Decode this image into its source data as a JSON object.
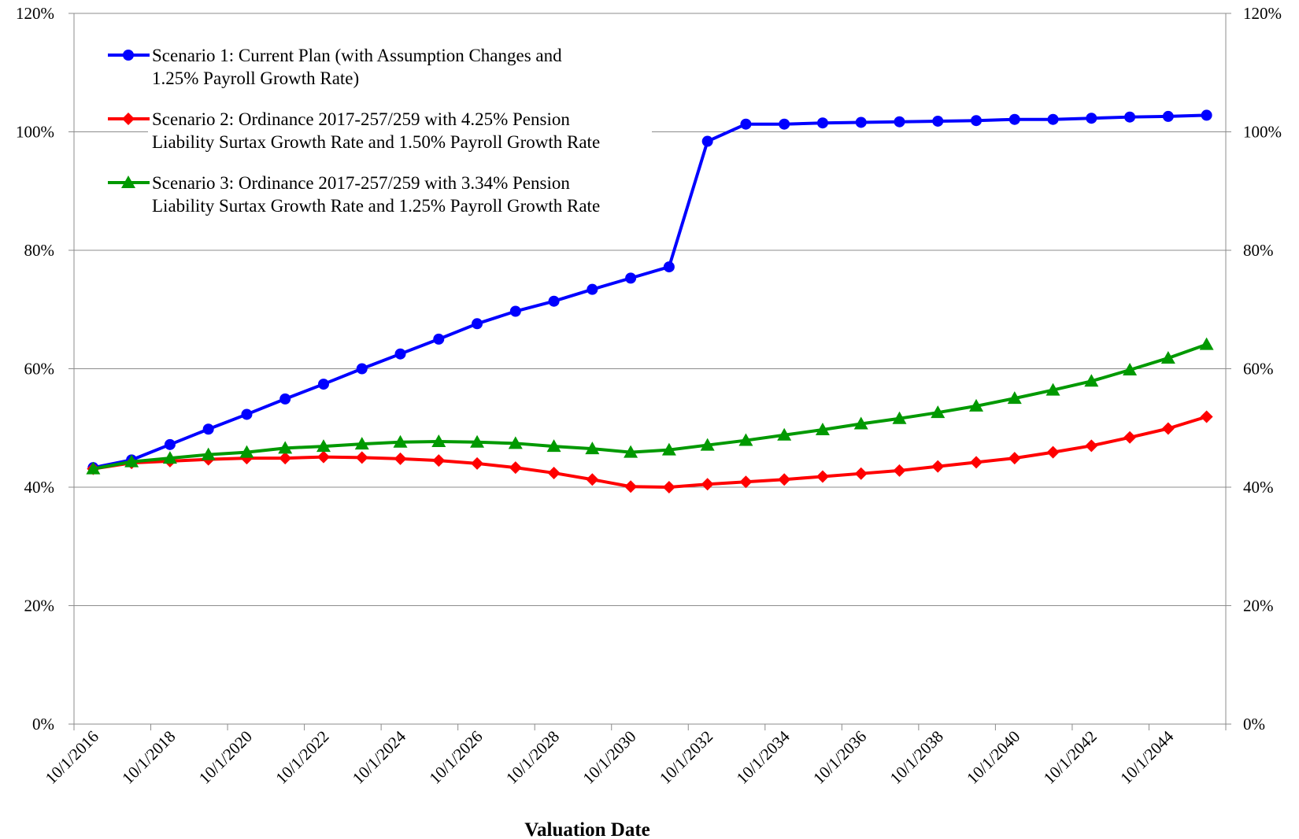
{
  "chart_data": {
    "type": "line",
    "title": "",
    "xlabel": "Valuation Date",
    "ylabel": "",
    "ylim": [
      0,
      1.2
    ],
    "y_ticks": [
      "0%",
      "20%",
      "40%",
      "60%",
      "80%",
      "100%",
      "120%"
    ],
    "x_tick_labels": [
      "10/1/2016",
      "10/1/2018",
      "10/1/2020",
      "10/1/2022",
      "10/1/2024",
      "10/1/2026",
      "10/1/2028",
      "10/1/2030",
      "10/1/2032",
      "10/1/2034",
      "10/1/2036",
      "10/1/2038",
      "10/1/2040",
      "10/1/2042",
      "10/1/2044"
    ],
    "secondary_y_axis": true,
    "grid": "horizontal",
    "legend_position": "top-left",
    "x": [
      "10/1/2016",
      "10/1/2017",
      "10/1/2018",
      "10/1/2019",
      "10/1/2020",
      "10/1/2021",
      "10/1/2022",
      "10/1/2023",
      "10/1/2024",
      "10/1/2025",
      "10/1/2026",
      "10/1/2027",
      "10/1/2028",
      "10/1/2029",
      "10/1/2030",
      "10/1/2031",
      "10/1/2032",
      "10/1/2033",
      "10/1/2034",
      "10/1/2035",
      "10/1/2036",
      "10/1/2037",
      "10/1/2038",
      "10/1/2039",
      "10/1/2040",
      "10/1/2041",
      "10/1/2042",
      "10/1/2043",
      "10/1/2044",
      "10/1/2045"
    ],
    "series": [
      {
        "name": "Scenario 1: Current Plan (with Assumption Changes and 1.25% Payroll Growth Rate)",
        "legend_lines": [
          "Scenario 1: Current Plan (with Assumption Changes and",
          "1.25% Payroll Growth Rate)"
        ],
        "color": "#0000FF",
        "marker": "circle",
        "values": [
          0.433,
          0.446,
          0.472,
          0.498,
          0.523,
          0.549,
          0.574,
          0.6,
          0.625,
          0.65,
          0.676,
          0.697,
          0.714,
          0.734,
          0.753,
          0.772,
          0.984,
          1.013,
          1.013,
          1.015,
          1.016,
          1.017,
          1.018,
          1.019,
          1.021,
          1.021,
          1.023,
          1.025,
          1.026,
          1.028
        ]
      },
      {
        "name": "Scenario 2: Ordinance 2017-257/259 with 4.25% Pension Liability Surtax Growth Rate and 1.50% Payroll Growth Rate",
        "legend_lines": [
          "Scenario 2: Ordinance 2017-257/259 with 4.25% Pension",
          "Liability Surtax Growth Rate and 1.50% Payroll Growth Rate"
        ],
        "color": "#FF0000",
        "marker": "diamond",
        "values": [
          0.431,
          0.441,
          0.444,
          0.447,
          0.449,
          0.449,
          0.451,
          0.45,
          0.448,
          0.445,
          0.44,
          0.433,
          0.424,
          0.413,
          0.401,
          0.4,
          0.405,
          0.409,
          0.413,
          0.418,
          0.423,
          0.428,
          0.435,
          0.442,
          0.449,
          0.459,
          0.47,
          0.484,
          0.499,
          0.519
        ]
      },
      {
        "name": "Scenario 3: Ordinance 2017-257/259 with 3.34% Pension Liability Surtax Growth Rate and 1.25% Payroll Growth Rate",
        "legend_lines": [
          "Scenario 3: Ordinance 2017-257/259 with 3.34% Pension",
          "Liability Surtax Growth Rate and 1.25% Payroll Growth Rate"
        ],
        "color": "#009900",
        "marker": "triangle",
        "values": [
          0.431,
          0.443,
          0.449,
          0.455,
          0.459,
          0.466,
          0.469,
          0.473,
          0.476,
          0.477,
          0.476,
          0.474,
          0.469,
          0.465,
          0.459,
          0.463,
          0.471,
          0.479,
          0.488,
          0.497,
          0.507,
          0.516,
          0.526,
          0.537,
          0.55,
          0.564,
          0.579,
          0.598,
          0.618,
          0.641
        ]
      }
    ]
  }
}
